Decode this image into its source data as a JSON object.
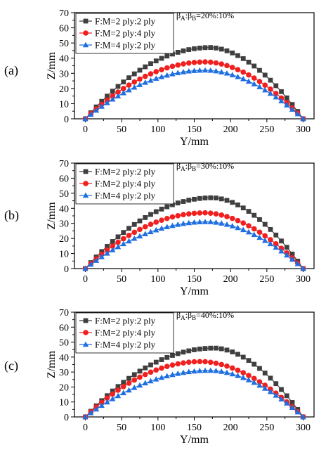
{
  "chart_data": [
    {
      "panel_label": "(a)",
      "type": "line",
      "annotation": {
        "prefix_a": "β",
        "sub_a": "A",
        "sep": ":",
        "prefix_b": "β",
        "sub_b": "B",
        "value": "=20%:10%"
      },
      "xlabel": "Y/mm",
      "ylabel": "Z/mm",
      "xlim": [
        -15,
        315
      ],
      "ylim": [
        0,
        70
      ],
      "xticks": [
        "0",
        "50",
        "100",
        "150",
        "200",
        "250",
        "300"
      ],
      "yticks": [
        "0",
        "10",
        "20",
        "30",
        "40",
        "50",
        "60",
        "70"
      ],
      "legend_position": "top-left",
      "series": [
        {
          "name": "F:M=2 ply:2 ply",
          "marker": "square",
          "color": "#3f3f3f",
          "peak_x": 172,
          "peak_y": 47
        },
        {
          "name": "F:M=2 ply:4 ply",
          "marker": "circle",
          "color": "#f02020",
          "peak_x": 166,
          "peak_y": 37.5
        },
        {
          "name": "F:M=4 ply:2 ply",
          "marker": "triangle",
          "color": "#1f6fe0",
          "peak_x": 166,
          "peak_y": 32
        }
      ]
    },
    {
      "panel_label": "(b)",
      "type": "line",
      "annotation": {
        "prefix_a": "β",
        "sub_a": "A",
        "sep": ":",
        "prefix_b": "β",
        "sub_b": "B",
        "value": "=30%:10%"
      },
      "xlabel": "Y/mm",
      "ylabel": "Z/mm",
      "xlim": [
        -15,
        315
      ],
      "ylim": [
        0,
        70
      ],
      "xticks": [
        "0",
        "50",
        "100",
        "150",
        "200",
        "250",
        "300"
      ],
      "yticks": [
        "0",
        "10",
        "20",
        "30",
        "40",
        "50",
        "60",
        "70"
      ],
      "legend_position": "top-left",
      "series": [
        {
          "name": "F:M=2 ply:2 ply",
          "marker": "square",
          "color": "#3f3f3f",
          "peak_x": 175,
          "peak_y": 47
        },
        {
          "name": "F:M=2 ply:4 ply",
          "marker": "circle",
          "color": "#f02020",
          "peak_x": 165,
          "peak_y": 37
        },
        {
          "name": "F:M=4 ply:2 ply",
          "marker": "triangle",
          "color": "#1f6fe0",
          "peak_x": 168,
          "peak_y": 31
        }
      ]
    },
    {
      "panel_label": "(c)",
      "type": "line",
      "annotation": {
        "prefix_a": "β",
        "sub_a": "A",
        "sep": ":",
        "prefix_b": "β",
        "sub_b": "B",
        "value": "=40%:10%"
      },
      "xlabel": "Y/mm",
      "ylabel": "Z/mm",
      "xlim": [
        -15,
        315
      ],
      "ylim": [
        0,
        70
      ],
      "xticks": [
        "0",
        "50",
        "100",
        "150",
        "200",
        "250",
        "300"
      ],
      "yticks": [
        "0",
        "10",
        "20",
        "30",
        "40",
        "50",
        "60",
        "70"
      ],
      "legend_position": "top-left",
      "series": [
        {
          "name": "F:M=2 ply:2 ply",
          "marker": "square",
          "color": "#3f3f3f",
          "peak_x": 178,
          "peak_y": 46
        },
        {
          "name": "F:M=2 ply:4 ply",
          "marker": "circle",
          "color": "#f02020",
          "peak_x": 160,
          "peak_y": 37
        },
        {
          "name": "F:M=4 ply:2 ply",
          "marker": "triangle",
          "color": "#1f6fe0",
          "peak_x": 172,
          "peak_y": 31
        }
      ]
    }
  ]
}
